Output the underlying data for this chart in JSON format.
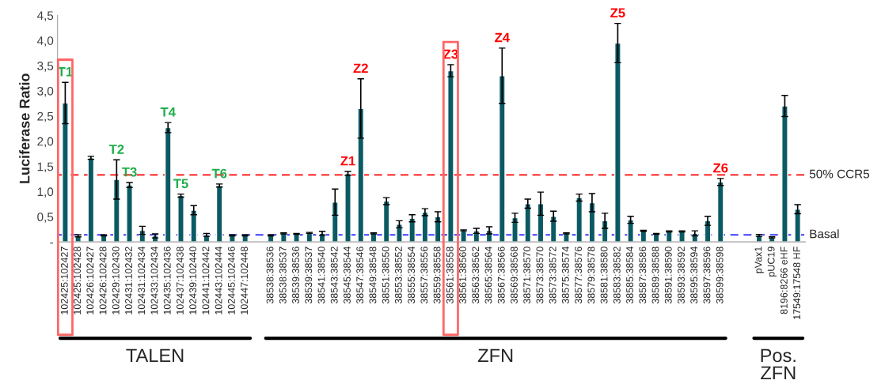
{
  "chart_data": {
    "type": "bar",
    "ylabel": "Luciferase Ratio",
    "categories": [
      "102425:102427",
      "102425:102428",
      "102426:102427",
      "102426:102428",
      "102429:102430",
      "102431:102432",
      "102431:102434",
      "102433:102434",
      "102435:102436",
      "102437:102438",
      "102439:102440",
      "102441:102442",
      "102443:102444",
      "102445:102446",
      "102447:102448",
      null,
      "38538:38536",
      "38538:38537",
      "38539:38536",
      "38539:38537",
      "38541:38540",
      "38543:38542",
      "38545:38544",
      "38547:38546",
      "38549:38548",
      "38551:38550",
      "38553:38552",
      "38555:38554",
      "38557:38556",
      "38559:38558",
      "38561:38558",
      "38561:38560",
      "38563:38562",
      "38565:38564",
      "38567:38566",
      "38569:38568",
      "38571:38570",
      "38573:38570",
      "38573:38572",
      "38575:38574",
      "38577:38576",
      "38579:38578",
      "38581:38580",
      "38583:38582",
      "38585:38584",
      "38587:38586",
      "38589:38588",
      "38591:38590",
      "38593:38592",
      "38595:38594",
      "38597:38596",
      "38599:38598",
      null,
      null,
      "pVax1",
      "pUC19",
      "8196:8266 eHF",
      "17549:17548 HF"
    ],
    "series": [
      {
        "color": "#0b5a63",
        "values": [
          2.76,
          0.12,
          1.67,
          0.13,
          1.24,
          1.13,
          0.23,
          0.12,
          2.27,
          0.92,
          0.63,
          0.14,
          1.12,
          0.13,
          0.13,
          null,
          0.13,
          0.17,
          0.16,
          0.18,
          0.17,
          0.79,
          1.36,
          2.65,
          0.17,
          0.81,
          0.35,
          0.47,
          0.59,
          0.5,
          3.4,
          0.23,
          0.22,
          0.23,
          3.3,
          0.48,
          0.76,
          0.76,
          0.51,
          0.17,
          0.88,
          0.78,
          0.42,
          3.95,
          0.44,
          0.22,
          0.16,
          0.21,
          0.21,
          0.17,
          0.42,
          1.19,
          null,
          null,
          0.13,
          0.09,
          2.7,
          0.65
        ],
        "errors": [
          0.41,
          0.02,
          0.03,
          0.01,
          0.39,
          0.05,
          0.08,
          0.04,
          0.1,
          0.03,
          0.09,
          0.03,
          0.03,
          0.01,
          0.01,
          null,
          0.01,
          0.01,
          0.01,
          0.01,
          0.04,
          0.26,
          0.04,
          0.59,
          0.01,
          0.07,
          0.07,
          0.07,
          0.07,
          0.1,
          0.12,
          0.01,
          0.05,
          0.07,
          0.55,
          0.09,
          0.09,
          0.23,
          0.1,
          0.01,
          0.07,
          0.18,
          0.15,
          0.39,
          0.07,
          0.01,
          0.01,
          0.01,
          0.01,
          0.05,
          0.09,
          0.07,
          null,
          null,
          0.02,
          0.01,
          0.21,
          0.09
        ]
      }
    ],
    "ylim": [
      0,
      4.5
    ],
    "yticks": [
      {
        "value": 0,
        "label": "-"
      },
      {
        "value": 0.5,
        "label": "0,5"
      },
      {
        "value": 1,
        "label": "1,0"
      },
      {
        "value": 1.5,
        "label": "1,5"
      },
      {
        "value": 2,
        "label": "2,0"
      },
      {
        "value": 2.5,
        "label": "2,5"
      },
      {
        "value": 3,
        "label": "3,0"
      },
      {
        "value": 3.5,
        "label": "3,5"
      },
      {
        "value": 4,
        "label": "4,0"
      },
      {
        "value": 4.5,
        "label": "4,5"
      }
    ],
    "ref_lines": [
      {
        "axis": "y",
        "value": 1.33,
        "label": "50% CCR5",
        "color": "#ff0000",
        "line_style": "dashed"
      },
      {
        "axis": "y",
        "value": 0.14,
        "label": "Basal",
        "color": "#0000ff",
        "line_style": "dashed"
      }
    ],
    "annotations": [
      {
        "text": "T1",
        "x": "102425:102427",
        "y": 2.76
      },
      {
        "text": "T2",
        "x": "102429:102430",
        "y": 1.24
      },
      {
        "text": "T3",
        "x": "102431:102432",
        "y": 1.13
      },
      {
        "text": "T4",
        "x": "102435:102436",
        "y": 2.27
      },
      {
        "text": "T5",
        "x": "102437:102438",
        "y": 0.92
      },
      {
        "text": "T6",
        "x": "102443:102444",
        "y": 1.12
      },
      {
        "text": "Z1",
        "x": "38545:38544",
        "y": 1.36
      },
      {
        "text": "Z2",
        "x": "38547:38546",
        "y": 2.65
      },
      {
        "text": "Z3",
        "x": "38561:38558",
        "y": 3.4
      },
      {
        "text": "Z4",
        "x": "38567:38566",
        "y": 3.3
      },
      {
        "text": "Z5",
        "x": "38583:38582",
        "y": 3.95
      },
      {
        "text": "Z6",
        "x": "38599:38598",
        "y": 1.19
      },
      "TALEN",
      "ZFN",
      "Pos.\nZFN"
    ],
    "grid": false,
    "legend": false
  }
}
